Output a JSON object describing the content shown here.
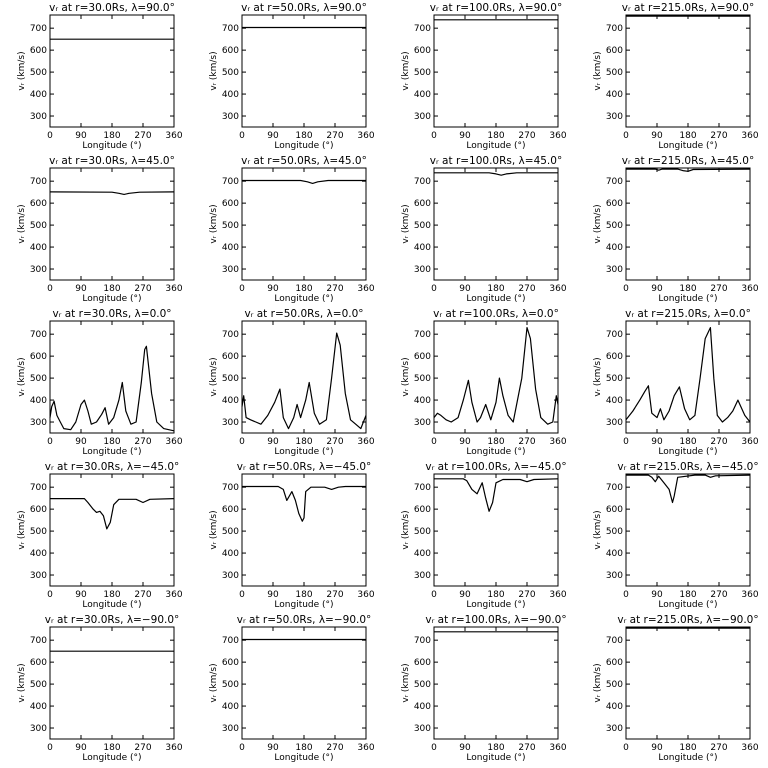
{
  "chart_data": {
    "type": "line",
    "layout": "5x4 grid of small multiples",
    "xlabel": "Longitude (°)",
    "ylabel": "vᵣ (km/s)",
    "xlim": [
      0,
      360
    ],
    "ylim": [
      250,
      760
    ],
    "xticks": [
      "0",
      "90",
      "180",
      "270",
      "360"
    ],
    "yticks": [
      "300",
      "400",
      "500",
      "600",
      "700"
    ],
    "grid": false,
    "legend": "none",
    "line_color": "#000000",
    "panels": [
      {
        "title": "vᵣ at r=30.0Rs, λ=90.0°",
        "x": [
          0,
          360
        ],
        "y": [
          650,
          650
        ]
      },
      {
        "title": "vᵣ at r=50.0Rs, λ=90.0°",
        "x": [
          0,
          360
        ],
        "y": [
          703,
          703
        ]
      },
      {
        "title": "vᵣ at r=100.0Rs, λ=90.0°",
        "x": [
          0,
          360
        ],
        "y": [
          738,
          738
        ]
      },
      {
        "title": "vᵣ at r=215.0Rs, λ=90.0°",
        "x": [
          0,
          360
        ],
        "y": [
          755,
          755
        ]
      },
      {
        "title": "vᵣ at r=30.0Rs, λ=45.0°",
        "x": [
          0,
          180,
          200,
          215,
          230,
          260,
          360
        ],
        "y": [
          651,
          650,
          645,
          640,
          645,
          650,
          651
        ]
      },
      {
        "title": "vᵣ at r=50.0Rs, λ=45.0°",
        "x": [
          0,
          170,
          190,
          205,
          220,
          250,
          360
        ],
        "y": [
          703,
          703,
          697,
          690,
          697,
          703,
          703
        ]
      },
      {
        "title": "vᵣ at r=100.0Rs, λ=45.0°",
        "x": [
          0,
          160,
          180,
          195,
          210,
          240,
          360
        ],
        "y": [
          738,
          738,
          733,
          727,
          733,
          738,
          738
        ]
      },
      {
        "title": "vᵣ at r=215.0Rs, λ=45.0°",
        "x": [
          0,
          85,
          95,
          105,
          150,
          165,
          180,
          195,
          360
        ],
        "y": [
          755,
          755,
          750,
          755,
          755,
          748,
          745,
          753,
          755
        ]
      },
      {
        "title": "vᵣ at r=30.0Rs, λ=0.0°",
        "x": [
          0,
          5,
          12,
          20,
          30,
          40,
          60,
          75,
          90,
          100,
          110,
          120,
          135,
          150,
          160,
          170,
          185,
          200,
          210,
          220,
          235,
          250,
          265,
          275,
          280,
          295,
          310,
          330,
          345,
          360
        ],
        "y": [
          320,
          370,
          395,
          330,
          300,
          270,
          265,
          300,
          380,
          400,
          350,
          290,
          300,
          335,
          365,
          290,
          320,
          400,
          480,
          350,
          290,
          300,
          480,
          630,
          645,
          430,
          300,
          270,
          265,
          260
        ]
      },
      {
        "title": "vᵣ at r=50.0Rs, λ=0.0°",
        "x": [
          0,
          5,
          12,
          25,
          40,
          55,
          75,
          95,
          110,
          120,
          135,
          150,
          160,
          170,
          185,
          195,
          210,
          225,
          245,
          260,
          275,
          285,
          300,
          315,
          330,
          345,
          360
        ],
        "y": [
          370,
          420,
          320,
          310,
          300,
          290,
          330,
          390,
          450,
          320,
          270,
          320,
          380,
          320,
          400,
          480,
          340,
          290,
          310,
          500,
          705,
          650,
          430,
          310,
          290,
          270,
          330
        ]
      },
      {
        "title": "vᵣ at r=100.0Rs, λ=0.0°",
        "x": [
          0,
          10,
          20,
          35,
          50,
          70,
          85,
          100,
          110,
          125,
          135,
          150,
          165,
          180,
          190,
          200,
          215,
          230,
          255,
          270,
          280,
          295,
          310,
          330,
          345,
          355,
          360
        ],
        "y": [
          320,
          340,
          330,
          310,
          300,
          320,
          400,
          490,
          390,
          300,
          320,
          380,
          310,
          390,
          500,
          420,
          330,
          300,
          500,
          730,
          680,
          450,
          320,
          290,
          300,
          420,
          380
        ]
      },
      {
        "title": "vᵣ at r=215.0Rs, λ=0.0°",
        "x": [
          0,
          20,
          40,
          55,
          65,
          75,
          90,
          100,
          110,
          125,
          140,
          155,
          170,
          185,
          200,
          215,
          230,
          245,
          255,
          265,
          280,
          295,
          310,
          325,
          345,
          360
        ],
        "y": [
          310,
          350,
          400,
          440,
          465,
          340,
          320,
          360,
          310,
          350,
          420,
          460,
          360,
          310,
          330,
          500,
          680,
          730,
          500,
          330,
          300,
          320,
          350,
          400,
          330,
          300
        ]
      },
      {
        "title": "vᵣ at r=30.0Rs, λ=−45.0°",
        "x": [
          0,
          100,
          110,
          125,
          135,
          145,
          155,
          165,
          175,
          185,
          200,
          250,
          270,
          290,
          360
        ],
        "y": [
          648,
          648,
          630,
          600,
          585,
          590,
          570,
          510,
          540,
          620,
          645,
          645,
          630,
          645,
          648
        ]
      },
      {
        "title": "vᵣ at r=50.0Rs, λ=−45.0°",
        "x": [
          0,
          105,
          120,
          130,
          145,
          155,
          165,
          175,
          180,
          185,
          200,
          240,
          260,
          280,
          300,
          360
        ],
        "y": [
          703,
          703,
          690,
          640,
          680,
          640,
          580,
          545,
          560,
          680,
          700,
          700,
          690,
          700,
          703,
          703
        ]
      },
      {
        "title": "vᵣ at r=100.0Rs, λ=−45.0°",
        "x": [
          0,
          85,
          95,
          110,
          125,
          140,
          150,
          160,
          170,
          180,
          200,
          250,
          270,
          290,
          360
        ],
        "y": [
          738,
          738,
          730,
          690,
          670,
          720,
          650,
          590,
          630,
          720,
          735,
          735,
          725,
          735,
          738
        ]
      },
      {
        "title": "vᵣ at r=215.0Rs, λ=−45.0°",
        "x": [
          0,
          65,
          75,
          85,
          95,
          110,
          125,
          135,
          140,
          150,
          200,
          230,
          245,
          260,
          360
        ],
        "y": [
          755,
          755,
          745,
          725,
          750,
          720,
          690,
          630,
          660,
          745,
          755,
          755,
          745,
          752,
          755
        ]
      },
      {
        "title": "vᵣ at r=30.0Rs, λ=−90.0°",
        "x": [
          0,
          360
        ],
        "y": [
          650,
          650
        ]
      },
      {
        "title": "vᵣ at r=50.0Rs, λ=−90.0°",
        "x": [
          0,
          360
        ],
        "y": [
          703,
          703
        ]
      },
      {
        "title": "vᵣ at r=100.0Rs, λ=−90.0°",
        "x": [
          0,
          360
        ],
        "y": [
          738,
          738
        ]
      },
      {
        "title": "vᵣ at r=215.0Rs, λ=−90.0°",
        "x": [
          0,
          360
        ],
        "y": [
          755,
          755
        ]
      }
    ]
  }
}
